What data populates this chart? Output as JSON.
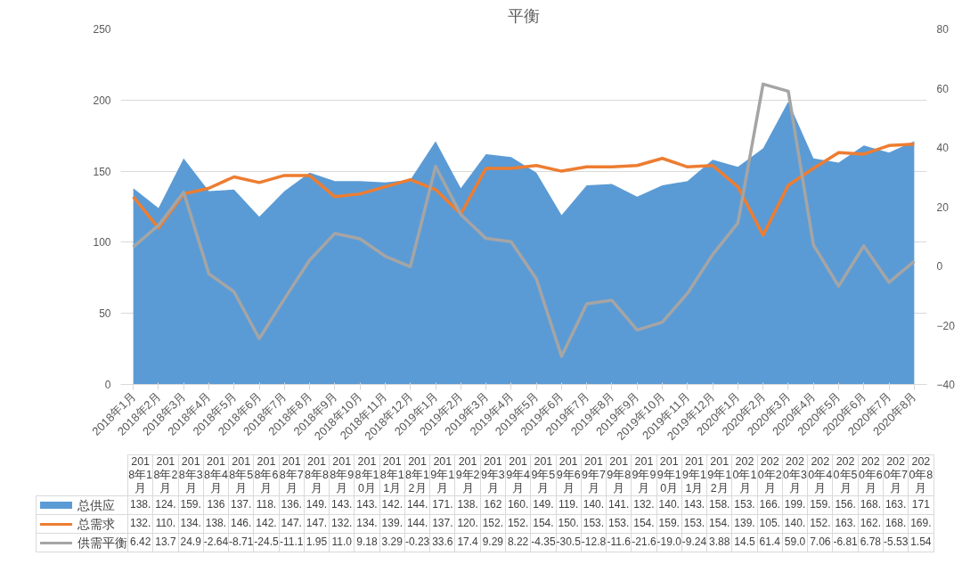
{
  "chart_data": {
    "type": "area",
    "title": "平衡",
    "categories": [
      "2018年1月",
      "2018年2月",
      "2018年3月",
      "2018年4月",
      "2018年5月",
      "2018年6月",
      "2018年7月",
      "2018年8月",
      "2018年9月",
      "2018年10月",
      "2018年11月",
      "2018年12月",
      "2019年1月",
      "2019年2月",
      "2019年3月",
      "2019年4月",
      "2019年5月",
      "2019年6月",
      "2019年7月",
      "2019年8月",
      "2019年9月",
      "2019年10月",
      "2019年11月",
      "2019年12月",
      "2020年1月",
      "2020年2月",
      "2020年3月",
      "2020年4月",
      "2020年5月",
      "2020年6月",
      "2020年7月",
      "2020年8月"
    ],
    "series": [
      {
        "name": "总供应",
        "color": "#5b9bd5",
        "values": [
          138,
          124,
          159,
          136,
          137,
          118,
          136,
          149,
          143,
          143,
          142,
          144,
          171,
          138,
          162,
          160,
          149,
          119,
          140,
          141,
          132,
          140,
          143,
          158,
          153,
          166,
          199,
          159,
          156,
          168,
          163,
          171
        ],
        "value_labels": [
          "138.",
          "124.",
          "159.",
          "136",
          "137.",
          "118.",
          "136.",
          "149.",
          "143.",
          "143.",
          "142.",
          "144.",
          "171.",
          "138.",
          "162",
          "160.",
          "149.",
          "119.",
          "140.",
          "141.",
          "132.",
          "140.",
          "143.",
          "158.",
          "153.",
          "166.",
          "199.",
          "159.",
          "156.",
          "168.",
          "163.",
          "171"
        ]
      },
      {
        "name": "总需求",
        "type": "line",
        "color": "#ed7d31",
        "values": [
          132,
          110,
          134,
          138,
          146,
          142,
          147,
          147,
          132,
          134,
          139,
          144,
          137,
          120,
          152,
          152,
          154,
          150,
          153,
          153,
          154,
          159,
          153,
          154,
          139,
          105,
          140,
          152,
          163,
          162,
          168,
          169
        ],
        "value_labels": [
          "132.",
          "110.",
          "134.",
          "138.",
          "146.",
          "142.",
          "147.",
          "147.",
          "132.",
          "134.",
          "139.",
          "144.",
          "137.",
          "120.",
          "152.",
          "152.",
          "154.",
          "150.",
          "153.",
          "153.",
          "154.",
          "159.",
          "153.",
          "154.",
          "139.",
          "105.",
          "140.",
          "152.",
          "163.",
          "162.",
          "168.",
          "169."
        ]
      },
      {
        "name": "供需平衡",
        "type": "line",
        "axis": "y2",
        "color": "#a5a5a5",
        "values": [
          6.42,
          13.7,
          24.9,
          -2.64,
          -8.71,
          -24.5,
          -11.1,
          1.95,
          11.0,
          9.18,
          3.29,
          -0.23,
          33.6,
          17.4,
          9.29,
          8.22,
          -4.35,
          -30.5,
          -12.8,
          -11.6,
          -21.6,
          -19.0,
          -9.24,
          3.88,
          14.5,
          61.4,
          59.0,
          7.06,
          -6.81,
          6.78,
          -5.53,
          1.54
        ],
        "value_labels": [
          "6.42",
          "13.7",
          "24.9",
          "-2.64",
          "-8.71",
          "-24.5",
          "-11.1",
          "1.95",
          "11.0",
          "9.18",
          "3.29",
          "-0.23",
          "33.6",
          "17.4",
          "9.29",
          "8.22",
          "-4.35",
          "-30.5",
          "-12.8",
          "-11.6",
          "-21.6",
          "-19.0",
          "-9.24",
          "3.88",
          "14.5",
          "61.4",
          "59.0",
          "7.06",
          "-6.81",
          "6.78",
          "-5.53",
          "1.54"
        ]
      }
    ],
    "ylim": [
      0,
      250
    ],
    "yticks": [
      0,
      50,
      100,
      150,
      200,
      250
    ],
    "y2lim": [
      -40,
      80
    ],
    "y2ticks": [
      -40,
      -20,
      0,
      20,
      40,
      60,
      80
    ],
    "grid": "y",
    "legend": "bottom"
  }
}
